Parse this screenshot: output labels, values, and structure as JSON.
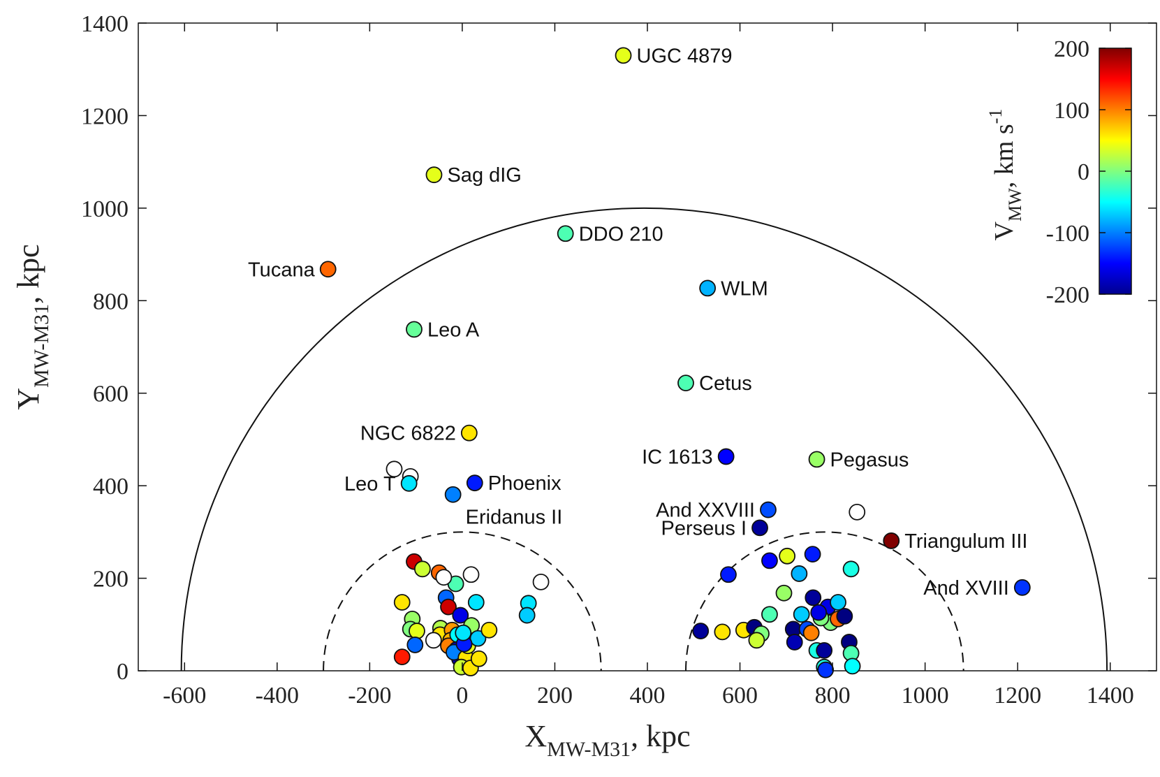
{
  "chart_data": {
    "type": "scatter",
    "title": "",
    "xlabel": {
      "main": "X",
      "sub": "MW-M31",
      "tail": ", kpc"
    },
    "ylabel": {
      "main": "Y",
      "sub": "MW-M31",
      "tail": ", kpc"
    },
    "xlim": [
      -700,
      1500
    ],
    "ylim": [
      0,
      1400
    ],
    "xticks": [
      -600,
      -400,
      -200,
      0,
      200,
      400,
      600,
      800,
      1000,
      1200,
      1400
    ],
    "yticks": [
      0,
      200,
      400,
      600,
      800,
      1000,
      1200,
      1400
    ],
    "xtick_labels": [
      "-600",
      "-400",
      "-200",
      "0",
      "200",
      "400",
      "600",
      "800",
      "1000",
      "1200",
      "1400"
    ],
    "ytick_labels": [
      "0",
      "200",
      "400",
      "600",
      "800",
      "1000",
      "1200",
      "1400"
    ],
    "grid": false,
    "colorbar": {
      "label": {
        "main": "V",
        "sub": "MW",
        "mid": ", km s",
        "sup": "-1"
      },
      "range": [
        -200,
        200
      ],
      "ticks": [
        200,
        100,
        0,
        -100,
        -200
      ],
      "tick_labels": [
        "200",
        "100",
        "0",
        "-100",
        "-200"
      ],
      "colormap": "jet",
      "placement": "top-right"
    },
    "circles": [
      {
        "type": "solid",
        "cx": 393,
        "cy": 0,
        "r": 1000
      },
      {
        "type": "dashed",
        "cx": 0,
        "cy": 0,
        "r": 300
      },
      {
        "type": "dashed",
        "cx": 783,
        "cy": 0,
        "r": 300
      }
    ],
    "labeled_points": [
      {
        "name": "UGC 4879",
        "x": 348,
        "y": 1330,
        "v": 40,
        "anchor": "right"
      },
      {
        "name": "Sag dIG",
        "x": -61,
        "y": 1072,
        "v": 40,
        "anchor": "right"
      },
      {
        "name": "DDO 210",
        "x": 223,
        "y": 945,
        "v": -20,
        "anchor": "right"
      },
      {
        "name": "Tucana",
        "x": -290,
        "y": 868,
        "v": 110,
        "anchor": "left"
      },
      {
        "name": "WLM",
        "x": 530,
        "y": 827,
        "v": -80,
        "anchor": "right"
      },
      {
        "name": "Leo A",
        "x": -104,
        "y": 738,
        "v": -10,
        "anchor": "right"
      },
      {
        "name": "Cetus",
        "x": 483,
        "y": 622,
        "v": -20,
        "anchor": "right"
      },
      {
        "name": "NGC 6822",
        "x": 15,
        "y": 514,
        "v": 60,
        "anchor": "left"
      },
      {
        "name": "IC 1613",
        "x": 570,
        "y": 463,
        "v": -150,
        "anchor": "left"
      },
      {
        "name": "Pegasus",
        "x": 766,
        "y": 457,
        "v": 10,
        "anchor": "right"
      },
      {
        "name": "Leo T",
        "x": -115,
        "y": 405,
        "v": -60,
        "anchor": "left"
      },
      {
        "name": "Phoenix",
        "x": 27,
        "y": 406,
        "v": -140,
        "anchor": "right"
      },
      {
        "name": "Eridanus II",
        "x": -20,
        "y": 381,
        "v": -100,
        "anchor": "below-right"
      },
      {
        "name": "And XXVIII",
        "x": 661,
        "y": 348,
        "v": -120,
        "anchor": "left"
      },
      {
        "name": "Perseus I",
        "x": 643,
        "y": 309,
        "v": -190,
        "anchor": "left"
      },
      {
        "name": "Triangulum III",
        "x": 927,
        "y": 281,
        "v": 200,
        "anchor": "right"
      },
      {
        "name": "And XVIII",
        "x": 1210,
        "y": 180,
        "v": -130,
        "anchor": "left"
      }
    ],
    "open_points": [
      {
        "x": -147,
        "y": 436
      },
      {
        "x": -112,
        "y": 420
      },
      {
        "x": 19,
        "y": 208
      },
      {
        "x": -40,
        "y": 202
      },
      {
        "x": 170,
        "y": 192
      },
      {
        "x": -62,
        "y": 66
      },
      {
        "x": 853,
        "y": 343
      }
    ],
    "points": [
      {
        "x": -104,
        "y": 236,
        "v": 170
      },
      {
        "x": -86,
        "y": 220,
        "v": 30
      },
      {
        "x": -50,
        "y": 212,
        "v": 110
      },
      {
        "x": -14,
        "y": 188,
        "v": -20
      },
      {
        "x": -35,
        "y": 158,
        "v": -110
      },
      {
        "x": -30,
        "y": 138,
        "v": 170
      },
      {
        "x": -130,
        "y": 148,
        "v": 60
      },
      {
        "x": -108,
        "y": 112,
        "v": 10
      },
      {
        "x": -112,
        "y": 90,
        "v": 0
      },
      {
        "x": -98,
        "y": 86,
        "v": 40
      },
      {
        "x": -47,
        "y": 92,
        "v": 20
      },
      {
        "x": -48,
        "y": 78,
        "v": 60
      },
      {
        "x": -4,
        "y": 120,
        "v": -160
      },
      {
        "x": -22,
        "y": 88,
        "v": 90
      },
      {
        "x": -25,
        "y": 66,
        "v": 80
      },
      {
        "x": -30,
        "y": 54,
        "v": 100
      },
      {
        "x": -10,
        "y": 78,
        "v": -50
      },
      {
        "x": -12,
        "y": 46,
        "v": -170
      },
      {
        "x": -6,
        "y": 26,
        "v": -180
      },
      {
        "x": -18,
        "y": 40,
        "v": -100
      },
      {
        "x": 8,
        "y": 28,
        "v": 60
      },
      {
        "x": -2,
        "y": 8,
        "v": 30
      },
      {
        "x": 18,
        "y": 6,
        "v": 60
      },
      {
        "x": 12,
        "y": 54,
        "v": 40
      },
      {
        "x": 20,
        "y": 98,
        "v": 10
      },
      {
        "x": 34,
        "y": 70,
        "v": -70
      },
      {
        "x": 30,
        "y": 148,
        "v": -60
      },
      {
        "x": 58,
        "y": 88,
        "v": 60
      },
      {
        "x": 36,
        "y": 26,
        "v": 60
      },
      {
        "x": 4,
        "y": 58,
        "v": -140
      },
      {
        "x": 2,
        "y": 82,
        "v": -60
      },
      {
        "x": -102,
        "y": 56,
        "v": -110
      },
      {
        "x": -130,
        "y": 30,
        "v": 140
      },
      {
        "x": 143,
        "y": 146,
        "v": -60
      },
      {
        "x": 140,
        "y": 120,
        "v": -70
      },
      {
        "x": 575,
        "y": 208,
        "v": -140
      },
      {
        "x": 515,
        "y": 86,
        "v": -190
      },
      {
        "x": 562,
        "y": 84,
        "v": 60
      },
      {
        "x": 608,
        "y": 88,
        "v": 60
      },
      {
        "x": 631,
        "y": 94,
        "v": -200
      },
      {
        "x": 646,
        "y": 80,
        "v": 0
      },
      {
        "x": 636,
        "y": 66,
        "v": 30
      },
      {
        "x": 664,
        "y": 238,
        "v": -150
      },
      {
        "x": 702,
        "y": 248,
        "v": 40
      },
      {
        "x": 728,
        "y": 210,
        "v": -80
      },
      {
        "x": 757,
        "y": 252,
        "v": -140
      },
      {
        "x": 695,
        "y": 168,
        "v": 10
      },
      {
        "x": 664,
        "y": 122,
        "v": -20
      },
      {
        "x": 715,
        "y": 90,
        "v": -200
      },
      {
        "x": 718,
        "y": 62,
        "v": -180
      },
      {
        "x": 733,
        "y": 122,
        "v": -70
      },
      {
        "x": 745,
        "y": 90,
        "v": -120
      },
      {
        "x": 754,
        "y": 82,
        "v": 100
      },
      {
        "x": 758,
        "y": 158,
        "v": -190
      },
      {
        "x": 766,
        "y": 44,
        "v": -40
      },
      {
        "x": 782,
        "y": 44,
        "v": -190
      },
      {
        "x": 775,
        "y": 120,
        "v": -100
      },
      {
        "x": 790,
        "y": 138,
        "v": -160
      },
      {
        "x": 796,
        "y": 104,
        "v": 0
      },
      {
        "x": 812,
        "y": 148,
        "v": -70
      },
      {
        "x": 812,
        "y": 112,
        "v": 110
      },
      {
        "x": 826,
        "y": 118,
        "v": -200
      },
      {
        "x": 836,
        "y": 62,
        "v": -200
      },
      {
        "x": 840,
        "y": 38,
        "v": -20
      },
      {
        "x": 840,
        "y": 220,
        "v": -40
      },
      {
        "x": 843,
        "y": 10,
        "v": -50
      },
      {
        "x": 782,
        "y": 8,
        "v": -40
      },
      {
        "x": 785,
        "y": 2,
        "v": -130
      },
      {
        "x": 775,
        "y": 114,
        "v": 0
      },
      {
        "x": 770,
        "y": 126,
        "v": -160
      }
    ]
  }
}
